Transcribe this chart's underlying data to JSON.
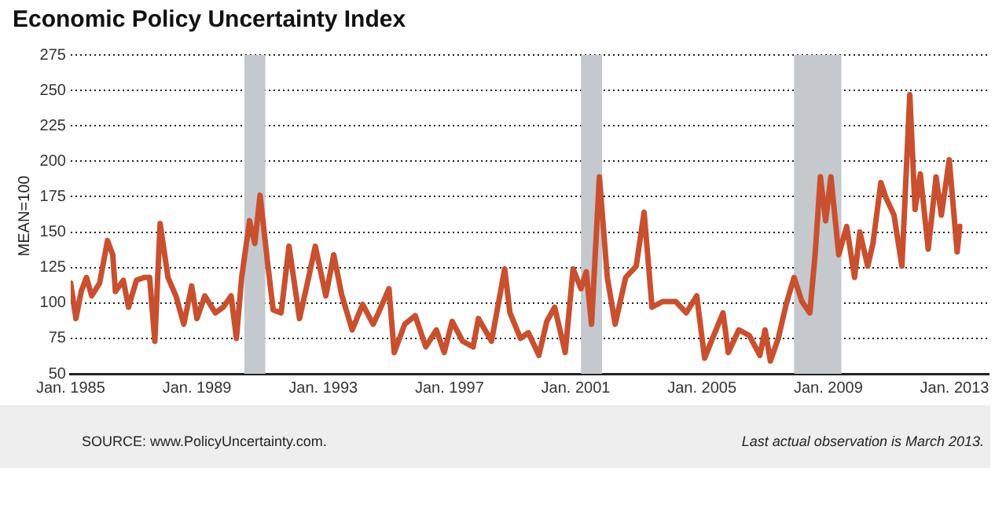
{
  "chart_data": {
    "type": "line",
    "title": "Economic Policy Uncertainty Index",
    "ylabel": "MEAN=100",
    "annotations": [
      "SOURCE: www.PolicyUncertainty.com.",
      "Last actual observation is March 2013."
    ],
    "x": [
      "1985-01",
      "1985-03",
      "1985-05",
      "1985-07",
      "1985-09",
      "1985-12",
      "1986-03",
      "1986-05",
      "1986-06",
      "1986-09",
      "1986-11",
      "1987-02",
      "1987-05",
      "1987-07",
      "1987-09",
      "1987-11",
      "1988-02",
      "1988-05",
      "1988-08",
      "1988-11",
      "1989-01",
      "1989-04",
      "1989-08",
      "1989-11",
      "1990-02",
      "1990-04",
      "1990-06",
      "1990-09",
      "1990-11",
      "1991-01",
      "1991-04",
      "1991-06",
      "1991-09",
      "1991-12",
      "1992-04",
      "1992-07",
      "1992-10",
      "1993-02",
      "1993-05",
      "1993-08",
      "1993-12",
      "1994-04",
      "1994-08",
      "1994-10",
      "1995-02",
      "1995-04",
      "1995-08",
      "1995-12",
      "1996-04",
      "1996-08",
      "1996-11",
      "1997-02",
      "1997-06",
      "1997-10",
      "1997-12",
      "1998-05",
      "1998-10",
      "1998-12",
      "1999-04",
      "1999-07",
      "1999-11",
      "2000-02",
      "2000-05",
      "2000-09",
      "2000-12",
      "2001-03",
      "2001-05",
      "2001-07",
      "2001-10",
      "2002-01",
      "2002-04",
      "2002-08",
      "2002-12",
      "2003-03",
      "2003-06",
      "2003-10",
      "2004-03",
      "2004-07",
      "2004-11",
      "2005-02",
      "2005-05",
      "2005-09",
      "2005-11",
      "2006-03",
      "2006-07",
      "2006-11",
      "2007-01",
      "2007-03",
      "2007-06",
      "2007-09",
      "2007-12",
      "2008-03",
      "2008-06",
      "2008-08",
      "2008-10",
      "2008-12",
      "2009-02",
      "2009-05",
      "2009-08",
      "2009-11",
      "2010-01",
      "2010-04",
      "2010-06",
      "2010-09",
      "2010-11",
      "2011-02",
      "2011-05",
      "2011-08",
      "2011-10",
      "2011-12",
      "2012-03",
      "2012-06",
      "2012-08",
      "2012-11",
      "2013-02",
      "2013-03"
    ],
    "series": [
      {
        "color": "#c9502f",
        "values": [
          114,
          89,
          108,
          118,
          105,
          114,
          144,
          134,
          108,
          116,
          97,
          116,
          118,
          118,
          73,
          156,
          118,
          105,
          85,
          112,
          89,
          105,
          93,
          97,
          105,
          75,
          118,
          158,
          142,
          176,
          126,
          95,
          93,
          140,
          89,
          114,
          140,
          105,
          134,
          106,
          81,
          99,
          85,
          93,
          110,
          65,
          85,
          91,
          69,
          81,
          65,
          87,
          73,
          69,
          89,
          73,
          124,
          93,
          75,
          79,
          63,
          87,
          97,
          65,
          124,
          110,
          122,
          85,
          189,
          118,
          85,
          118,
          126,
          164,
          97,
          101,
          101,
          93,
          105,
          61,
          75,
          93,
          65,
          81,
          77,
          63,
          81,
          59,
          75,
          99,
          118,
          101,
          93,
          134,
          189,
          158,
          189,
          134,
          154,
          118,
          150,
          126,
          142,
          185,
          174,
          162,
          126,
          247,
          166,
          191,
          138,
          189,
          162,
          201,
          136,
          154
        ]
      }
    ],
    "xlim": [
      "1985-01",
      "2014-02"
    ],
    "xticks": [
      {
        "value": "1985-01",
        "label": "Jan. 1985"
      },
      {
        "value": "1989-01",
        "label": "Jan. 1989"
      },
      {
        "value": "1993-01",
        "label": "Jan. 1993"
      },
      {
        "value": "1997-01",
        "label": "Jan. 1997"
      },
      {
        "value": "2001-01",
        "label": "Jan. 2001"
      },
      {
        "value": "2005-01",
        "label": "Jan. 2005"
      },
      {
        "value": "2009-01",
        "label": "Jan. 2009"
      },
      {
        "value": "2013-01",
        "label": "Jan. 2013"
      }
    ],
    "ylim": [
      50,
      275
    ],
    "yticks": [
      50,
      75,
      100,
      125,
      150,
      175,
      200,
      225,
      250,
      275
    ],
    "grid": "y",
    "legend": false,
    "marker": "none",
    "line_style": "solid",
    "bands": [
      {
        "axis": "x",
        "from": "1990-07",
        "to": "1991-03",
        "color": "#c5c8cc"
      },
      {
        "axis": "x",
        "from": "2001-03",
        "to": "2001-11",
        "color": "#c5c8cc"
      },
      {
        "axis": "x",
        "from": "2007-12",
        "to": "2009-06",
        "color": "#c5c8cc"
      }
    ]
  }
}
